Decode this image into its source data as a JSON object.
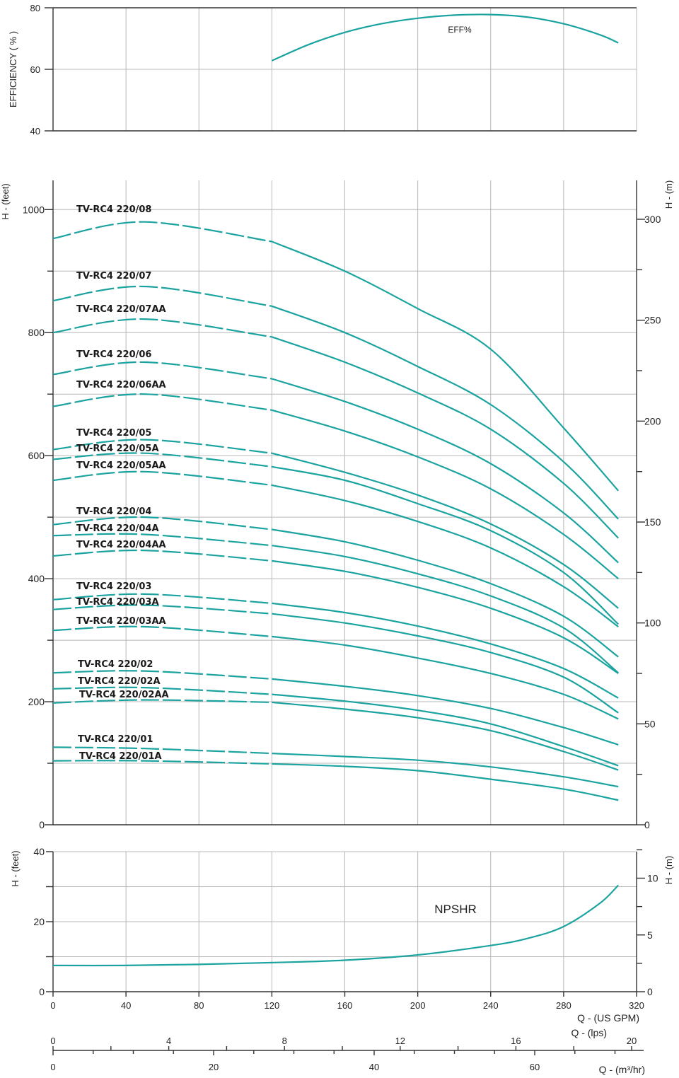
{
  "chart_data": [
    {
      "type": "line",
      "panel": "efficiency",
      "ylabel": "EFFICIENCY ( % )",
      "ylim": [
        40,
        80
      ],
      "y_ticks": [
        "40",
        "60",
        "80"
      ],
      "xlim": [
        0,
        320
      ],
      "grid": true,
      "series": [
        {
          "name": "EFF%",
          "x": [
            120,
            140,
            160,
            180,
            200,
            220,
            240,
            260,
            280,
            300,
            310
          ],
          "y": [
            62.8,
            68.0,
            72.0,
            74.8,
            76.6,
            77.6,
            77.8,
            77.0,
            74.8,
            71.2,
            68.6
          ]
        }
      ]
    },
    {
      "type": "line",
      "panel": "head",
      "ylabel_left": "H - (feet)",
      "ylabel_right": "H - (m)",
      "ylim": [
        0,
        1050
      ],
      "y_ticks_left": [
        "0",
        "200",
        "400",
        "600",
        "800",
        "1000"
      ],
      "y_ticks_right": [
        "0",
        "50",
        "100",
        "150",
        "200",
        "250",
        "300"
      ],
      "xlim": [
        0,
        320
      ],
      "grid": true,
      "note": "dashed segment from Q=0 to Q=120 US GPM, solid from 120 to 310",
      "series": [
        {
          "name": "TV-RC4 220/08",
          "x": [
            0,
            50,
            120,
            160,
            200,
            240,
            280,
            310
          ],
          "y": [
            953,
            980,
            948,
            900,
            839,
            773,
            645,
            543
          ]
        },
        {
          "name": "TV-RC4 220/07",
          "x": [
            0,
            50,
            120,
            160,
            200,
            240,
            280,
            310
          ],
          "y": [
            852,
            875,
            843,
            800,
            745,
            683,
            590,
            497
          ]
        },
        {
          "name": "TV-RC4 220/07AA",
          "x": [
            0,
            50,
            120,
            160,
            200,
            240,
            280,
            310
          ],
          "y": [
            800,
            822,
            793,
            752,
            702,
            643,
            555,
            466
          ]
        },
        {
          "name": "TV-RC4 220/06",
          "x": [
            0,
            50,
            120,
            160,
            200,
            240,
            280,
            310
          ],
          "y": [
            732,
            752,
            725,
            688,
            643,
            587,
            507,
            426
          ]
        },
        {
          "name": "TV-RC4 220/06AA",
          "x": [
            0,
            50,
            120,
            160,
            200,
            240,
            280,
            310
          ],
          "y": [
            680,
            700,
            674,
            640,
            598,
            546,
            472,
            400
          ]
        },
        {
          "name": "TV-RC4 220/05",
          "x": [
            0,
            50,
            120,
            160,
            200,
            240,
            280,
            310
          ],
          "y": [
            610,
            626,
            604,
            573,
            536,
            489,
            423,
            352
          ]
        },
        {
          "name": "TV-RC4 220/05A",
          "x": [
            0,
            50,
            120,
            160,
            200,
            240,
            280,
            310
          ],
          "y": [
            594,
            604,
            582,
            560,
            522,
            478,
            410,
            326
          ]
        },
        {
          "name": "TV-RC4 220/05AA",
          "x": [
            0,
            50,
            120,
            160,
            200,
            240,
            280,
            310
          ],
          "y": [
            560,
            574,
            552,
            527,
            493,
            450,
            387,
            322
          ]
        },
        {
          "name": "TV-RC4 220/04",
          "x": [
            0,
            50,
            120,
            160,
            200,
            240,
            280,
            310
          ],
          "y": [
            488,
            500,
            480,
            460,
            430,
            392,
            339,
            273
          ]
        },
        {
          "name": "TV-RC4 220/04A",
          "x": [
            0,
            50,
            120,
            160,
            200,
            240,
            280,
            310
          ],
          "y": [
            470,
            472,
            454,
            436,
            408,
            372,
            320,
            247
          ]
        },
        {
          "name": "TV-RC4 220/04AA",
          "x": [
            0,
            50,
            120,
            160,
            200,
            240,
            280,
            310
          ],
          "y": [
            437,
            446,
            429,
            412,
            386,
            352,
            304,
            246
          ]
        },
        {
          "name": "TV-RC4 220/03",
          "x": [
            0,
            50,
            120,
            160,
            200,
            240,
            280,
            310
          ],
          "y": [
            366,
            375,
            360,
            345,
            323,
            294,
            254,
            206
          ]
        },
        {
          "name": "TV-RC4 220/03A",
          "x": [
            0,
            50,
            120,
            160,
            200,
            240,
            280,
            310
          ],
          "y": [
            350,
            357,
            343,
            328,
            307,
            280,
            240,
            182
          ]
        },
        {
          "name": "TV-RC4 220/03AA",
          "x": [
            0,
            50,
            120,
            160,
            200,
            240,
            280,
            310
          ],
          "y": [
            316,
            322,
            306,
            292,
            271,
            246,
            212,
            172
          ]
        },
        {
          "name": "TV-RC4 220/02",
          "x": [
            0,
            50,
            120,
            160,
            200,
            240,
            280,
            310
          ],
          "y": [
            247,
            250,
            237,
            225,
            210,
            189,
            158,
            130
          ]
        },
        {
          "name": "TV-RC4 220/02A",
          "x": [
            0,
            50,
            120,
            160,
            200,
            240,
            280,
            310
          ],
          "y": [
            221,
            223,
            212,
            201,
            186,
            164,
            127,
            96
          ]
        },
        {
          "name": "TV-RC4 220/02AA",
          "x": [
            0,
            50,
            120,
            160,
            200,
            240,
            280,
            310
          ],
          "y": [
            198,
            203,
            199,
            188,
            174,
            153,
            119,
            89
          ]
        },
        {
          "name": "TV-RC4 220/01",
          "x": [
            0,
            50,
            120,
            160,
            200,
            240,
            280,
            310
          ],
          "y": [
            126,
            124,
            116,
            111,
            105,
            94,
            78,
            62
          ]
        },
        {
          "name": "TV-RC4 220/01A",
          "x": [
            0,
            50,
            120,
            160,
            200,
            240,
            280,
            310
          ],
          "y": [
            104,
            104,
            99,
            95,
            88,
            74,
            58,
            40
          ]
        }
      ]
    },
    {
      "type": "line",
      "panel": "npshr",
      "ylabel_left": "H - (feet)",
      "ylabel_right": "H - (m)",
      "ylim": [
        0,
        40
      ],
      "y_ticks_left": [
        "0",
        "20",
        "40"
      ],
      "y_ticks_right": [
        "0",
        "5",
        "10"
      ],
      "xlim": [
        0,
        320
      ],
      "grid": true,
      "series": [
        {
          "name": "NPSHR",
          "x": [
            0,
            40,
            80,
            120,
            160,
            200,
            240,
            260,
            280,
            300,
            310
          ],
          "y": [
            7.5,
            7.5,
            7.8,
            8.3,
            9.0,
            10.5,
            13.2,
            15.2,
            18.6,
            25.3,
            30.4
          ]
        }
      ]
    }
  ],
  "x_axes": {
    "gpm": {
      "label": "Q - (US GPM)",
      "ticks": [
        "0",
        "40",
        "80",
        "120",
        "160",
        "200",
        "240",
        "280",
        "320"
      ]
    },
    "lps": {
      "label": "Q - (lps)",
      "ticks": [
        "0",
        "4",
        "8",
        "12",
        "16",
        "20"
      ]
    },
    "m3h": {
      "label": "Q - (m³/hr)",
      "ticks": [
        "0",
        "20",
        "40",
        "60"
      ]
    }
  },
  "colors": {
    "curve": "#1ba3a0",
    "grid": "#b8b8b8",
    "axis": "#333333"
  }
}
